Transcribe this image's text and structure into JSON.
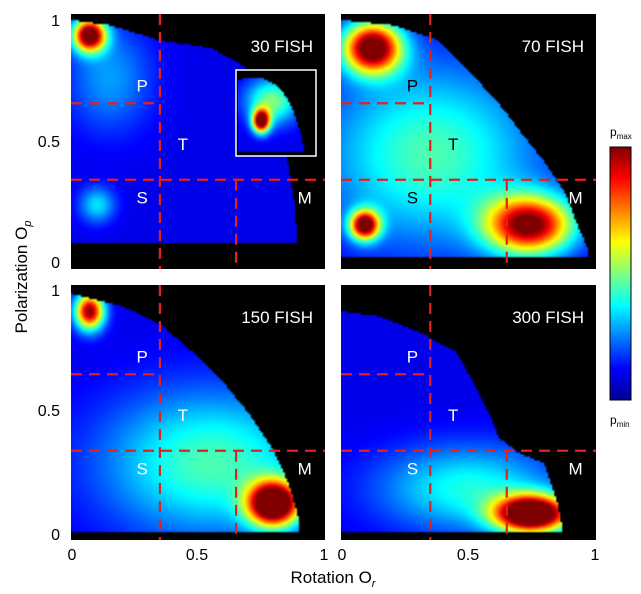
{
  "chart_data": {
    "type": "heatmap",
    "xlabel": "Rotation O",
    "xlabel_sub": "r",
    "ylabel": "Polarization O",
    "ylabel_sub": "p",
    "xlim": [
      0,
      1
    ],
    "ylim": [
      0,
      1
    ],
    "x_ticks": [
      "0",
      "0.5",
      "1"
    ],
    "x_ticks_right": [
      "0",
      "0.5",
      "1"
    ],
    "y_ticks_top": [
      "1",
      "0.5",
      "0"
    ],
    "y_ticks_bottom": [
      "1",
      "0.5",
      "0"
    ],
    "thresholds": {
      "x": [
        0.35,
        0.65
      ],
      "y": [
        0.35,
        0.65
      ]
    },
    "region_labels": [
      "P",
      "T",
      "S",
      "M"
    ],
    "colorbar": {
      "max_label": "p",
      "max_sub": "max",
      "min_label": "p",
      "min_sub": "min"
    },
    "colors": {
      "background": "#000000",
      "threshold_line": "#e3201b",
      "inset_frame": "#ffffff"
    },
    "panels": [
      {
        "title": "30 FISH",
        "has_inset": true,
        "blobs": [
          {
            "x": 0.07,
            "y": 0.92,
            "sx": 0.045,
            "sy": 0.045,
            "v": 1.0
          },
          {
            "x": 0.1,
            "y": 0.25,
            "sx": 0.05,
            "sy": 0.05,
            "v": 0.25
          },
          {
            "x": 0.15,
            "y": 0.75,
            "sx": 0.12,
            "sy": 0.15,
            "v": 0.18
          }
        ],
        "inset_blobs": [
          {
            "x": 0.3,
            "y": 0.4,
            "sx": 0.08,
            "sy": 0.1,
            "v": 1.0
          },
          {
            "x": 0.45,
            "y": 0.65,
            "sx": 0.25,
            "sy": 0.2,
            "v": 0.4
          }
        ]
      },
      {
        "title": "70 FISH",
        "has_inset": false,
        "blobs": [
          {
            "x": 0.12,
            "y": 0.87,
            "sx": 0.08,
            "sy": 0.07,
            "v": 1.0
          },
          {
            "x": 0.09,
            "y": 0.17,
            "sx": 0.04,
            "sy": 0.04,
            "v": 0.95
          },
          {
            "x": 0.74,
            "y": 0.17,
            "sx": 0.12,
            "sy": 0.08,
            "v": 0.9
          },
          {
            "x": 0.35,
            "y": 0.45,
            "sx": 0.3,
            "sy": 0.25,
            "v": 0.35
          }
        ]
      },
      {
        "title": "150 FISH",
        "has_inset": false,
        "blobs": [
          {
            "x": 0.07,
            "y": 0.9,
            "sx": 0.04,
            "sy": 0.05,
            "v": 0.9
          },
          {
            "x": 0.8,
            "y": 0.14,
            "sx": 0.07,
            "sy": 0.06,
            "v": 1.15
          },
          {
            "x": 0.55,
            "y": 0.3,
            "sx": 0.3,
            "sy": 0.2,
            "v": 0.35
          }
        ]
      },
      {
        "title": "300 FISH",
        "has_inset": false,
        "blobs": [
          {
            "x": 0.75,
            "y": 0.1,
            "sx": 0.1,
            "sy": 0.05,
            "v": 1.2
          },
          {
            "x": 0.5,
            "y": 0.2,
            "sx": 0.25,
            "sy": 0.12,
            "v": 0.3
          }
        ]
      }
    ]
  }
}
